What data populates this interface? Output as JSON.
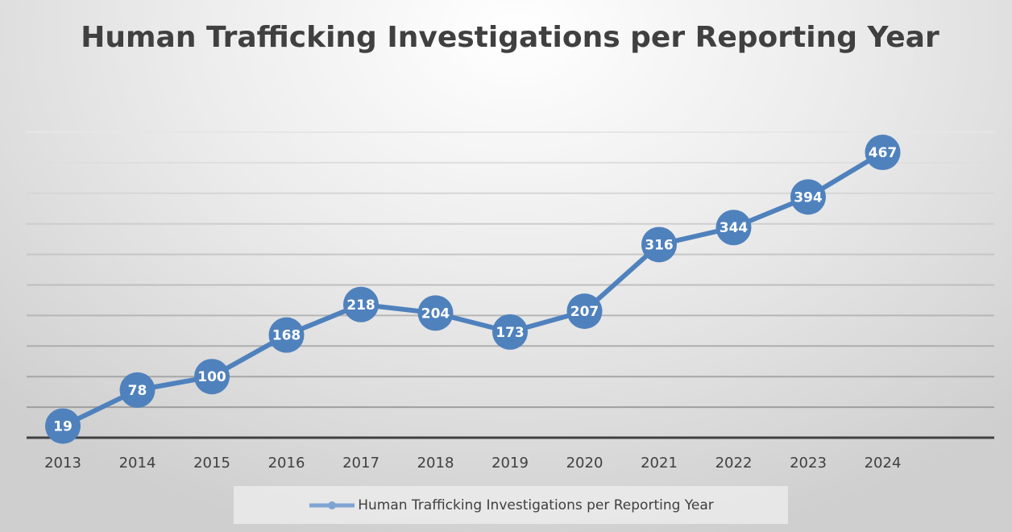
{
  "chart_data": {
    "type": "line",
    "title": "Human Trafficking Investigations per Reporting Year",
    "categories": [
      "2013",
      "2014",
      "2015",
      "2016",
      "2017",
      "2018",
      "2019",
      "2020",
      "2021",
      "2022",
      "2023",
      "2024"
    ],
    "series": [
      {
        "name": "Human Trafficking Investigations per Reporting Year",
        "values": [
          19,
          78,
          100,
          168,
          218,
          204,
          173,
          207,
          316,
          344,
          394,
          467
        ]
      }
    ],
    "ylim": [
      0,
      500
    ],
    "grid_step": 50,
    "grid": true,
    "y_tick_labels_shown": false,
    "data_labels": true,
    "legend_position": "bottom",
    "colors": {
      "series": "#4f81bd",
      "grid": "#9a9a9a",
      "axis": "#404040",
      "text": "#404040"
    }
  }
}
